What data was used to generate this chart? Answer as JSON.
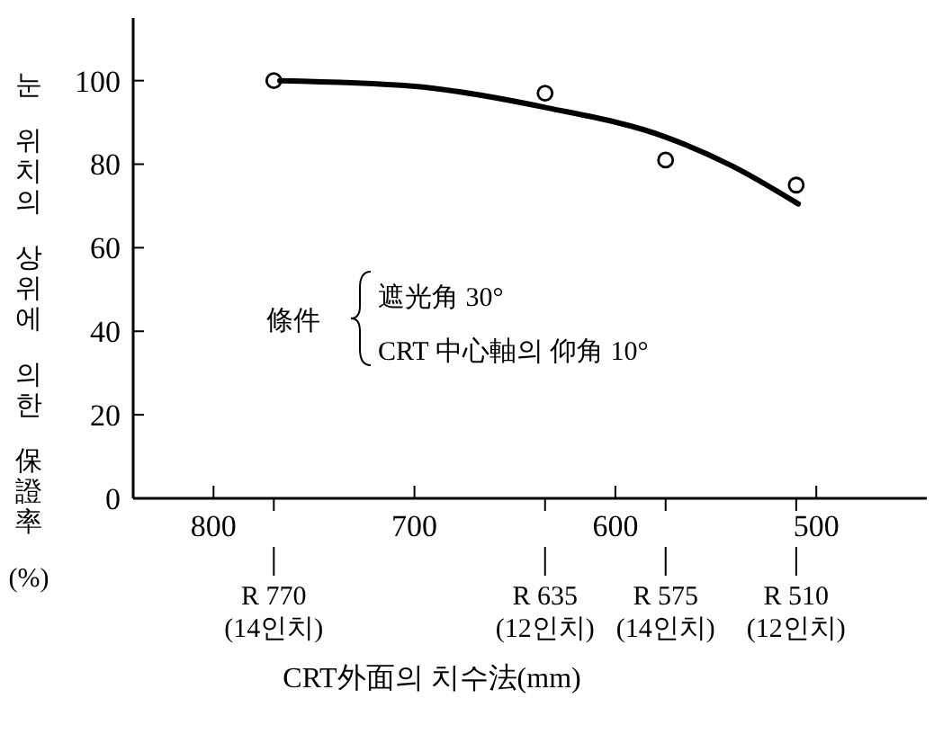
{
  "chart_data": {
    "type": "scatter",
    "xlabel": "CRT外面의 치수法(mm)",
    "ylabel": "눈 위치의 상위에 의한 保證率 (%)",
    "xlim": [
      840,
      445
    ],
    "xticks": [
      800,
      700,
      600,
      500
    ],
    "ylim": [
      0,
      115
    ],
    "yticks": [
      0,
      20,
      40,
      60,
      80,
      100
    ],
    "grid": false,
    "x": [
      770,
      635,
      575,
      510
    ],
    "series": [
      {
        "color": "#000000",
        "marker": "circle",
        "values": [
          100,
          97,
          81,
          75
        ]
      },
      {
        "type": "line",
        "color": "#000000",
        "x": [
          767,
          701,
          634,
          575,
          542,
          509
        ],
        "values": [
          100,
          98.7,
          93.5,
          86.5,
          79.6,
          70.5
        ]
      }
    ],
    "annotations": [
      {
        "text": "R 770\n(14인치)",
        "x": 770
      },
      {
        "text": "R 635\n(12인치)",
        "x": 635
      },
      {
        "text": "R 575\n(14인치)",
        "x": 575
      },
      {
        "text": "R 510\n(12인치)",
        "x": 510
      },
      "條件",
      "遮光角 30°",
      "CRT 中心軸의 仰角 10°"
    ]
  }
}
